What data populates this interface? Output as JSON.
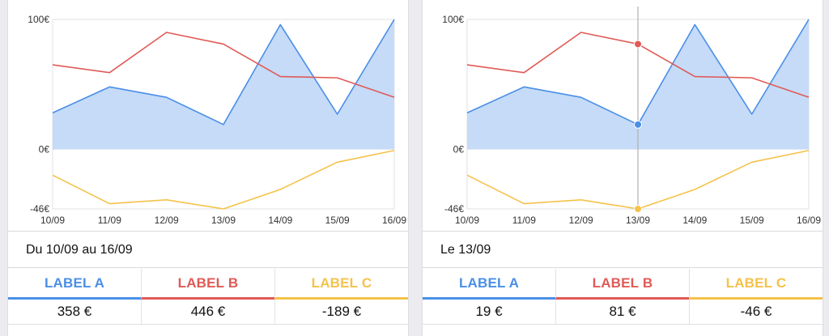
{
  "colors": {
    "series_a": "#4a8fe7",
    "series_a_fill": "#c5dbf8",
    "series_b": "#e05a56",
    "series_c": "#f5c24a",
    "grid": "#e2e2e6",
    "axis_text": "#333333",
    "cursor": "#b0b0b0"
  },
  "chart_data": [
    {
      "type": "line",
      "categories": [
        "10/09",
        "11/09",
        "12/09",
        "13/09",
        "14/09",
        "15/09",
        "16/09"
      ],
      "y_ticks": [
        "100€",
        "0€",
        "-46€"
      ],
      "ylim": [
        -46,
        100
      ],
      "series": [
        {
          "name": "LABEL A",
          "values": [
            28,
            48,
            40,
            19,
            96,
            27,
            100
          ],
          "fill": true
        },
        {
          "name": "LABEL B",
          "values": [
            65,
            59,
            90,
            81,
            56,
            55,
            40
          ]
        },
        {
          "name": "LABEL C",
          "values": [
            -20,
            -42,
            -39,
            -46,
            -31,
            -10,
            -1
          ]
        }
      ],
      "highlight_index": null
    },
    {
      "type": "line",
      "categories": [
        "10/09",
        "11/09",
        "12/09",
        "13/09",
        "14/09",
        "15/09",
        "16/09"
      ],
      "y_ticks": [
        "100€",
        "0€",
        "-46€"
      ],
      "ylim": [
        -46,
        100
      ],
      "series": [
        {
          "name": "LABEL A",
          "values": [
            28,
            48,
            40,
            19,
            96,
            27,
            100
          ],
          "fill": true
        },
        {
          "name": "LABEL B",
          "values": [
            65,
            59,
            90,
            81,
            56,
            55,
            40
          ]
        },
        {
          "name": "LABEL C",
          "values": [
            -20,
            -42,
            -39,
            -46,
            -31,
            -10,
            -1
          ]
        }
      ],
      "highlight_index": 3
    }
  ],
  "panels": [
    {
      "period": "Du 10/09 au 16/09",
      "tabs": [
        {
          "label": "LABEL A",
          "value": "358 €"
        },
        {
          "label": "LABEL B",
          "value": "446 €"
        },
        {
          "label": "LABEL C",
          "value": "-189 €"
        }
      ]
    },
    {
      "period": "Le 13/09",
      "tabs": [
        {
          "label": "LABEL A",
          "value": "19 €"
        },
        {
          "label": "LABEL B",
          "value": "81 €"
        },
        {
          "label": "LABEL C",
          "value": "-46 €"
        }
      ]
    }
  ]
}
